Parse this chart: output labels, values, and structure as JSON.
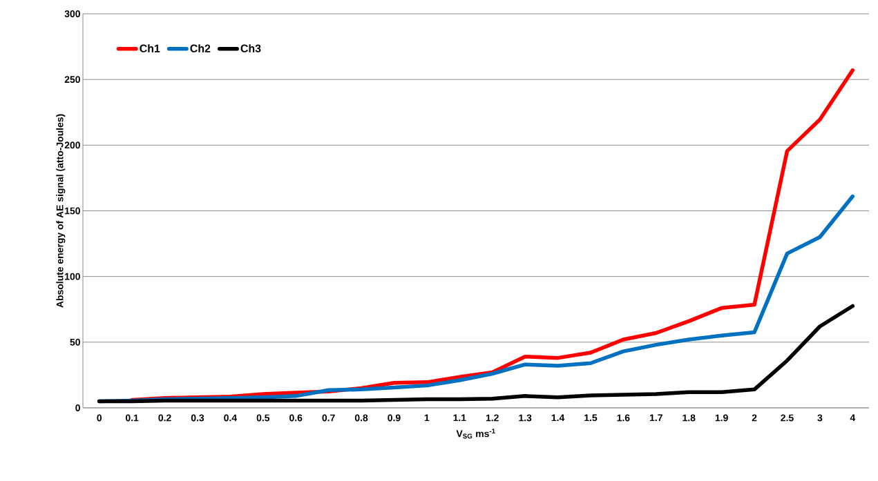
{
  "chart_data": {
    "type": "line",
    "xlabel": "V$_{SG}$  ms$^{-1}$",
    "ylabel": "Absolute energy of AE signal (atto-Joules)",
    "categories": [
      "0",
      "0.1",
      "0.2",
      "0.3",
      "0.4",
      "0.5",
      "0.6",
      "0.7",
      "0.8",
      "0.9",
      "1",
      "1.1",
      "1.2",
      "1.3",
      "1.4",
      "1.5",
      "1.6",
      "1.7",
      "1.8",
      "1.9",
      "2",
      "2.5",
      "3",
      "4"
    ],
    "series": [
      {
        "name": "Ch1",
        "color": "#ff0000",
        "values": [
          null,
          6,
          7.5,
          8,
          8.5,
          10.5,
          11.5,
          12.5,
          15,
          19,
          19.5,
          23.5,
          27,
          39,
          38,
          42,
          52,
          57,
          66,
          76,
          78.5,
          195.5,
          219.5,
          257
        ]
      },
      {
        "name": "Ch2",
        "color": "#0070c0",
        "values": [
          5,
          5.5,
          6.5,
          7,
          7.5,
          8,
          9,
          13.5,
          14,
          15.5,
          17,
          21,
          26,
          33,
          32,
          34,
          43,
          48,
          52,
          55,
          57.5,
          117.5,
          130,
          161
        ]
      },
      {
        "name": "Ch3",
        "color": "#000000",
        "values": [
          5,
          5,
          5.5,
          5.5,
          5.5,
          5.5,
          5.5,
          5.5,
          5.5,
          6,
          6.5,
          6.5,
          7,
          9,
          8,
          9.5,
          10,
          10.5,
          12,
          12,
          14,
          36,
          62,
          77.5
        ]
      }
    ],
    "ylim": [
      0,
      300
    ],
    "yticks": [
      0,
      50,
      100,
      150,
      200,
      250,
      300
    ],
    "grid": "y",
    "legend": "top left",
    "marker": "none",
    "line_style": "solid"
  }
}
